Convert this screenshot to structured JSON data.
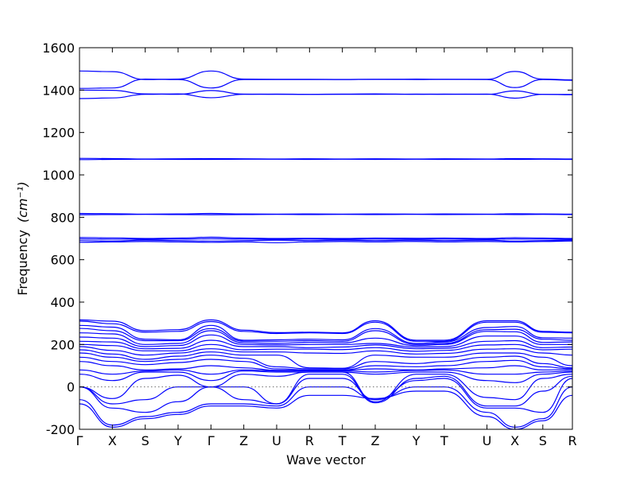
{
  "chart_data": {
    "type": "line",
    "xlabel": "Wave vector",
    "ylabel": "Frequency",
    "ylabel_unit": "(cm⁻¹)",
    "ylim": [
      -200,
      1600
    ],
    "yticks": [
      -200,
      0,
      200,
      400,
      600,
      800,
      1000,
      1200,
      1400,
      1600
    ],
    "zero_line": true,
    "grid": false,
    "line_color": "#0000ff",
    "high_symmetry_points": [
      "Γ",
      "X",
      "S",
      "Y",
      "Γ",
      "Z",
      "U",
      "R",
      "T",
      "Z",
      "Y",
      "T",
      "U",
      "X",
      "S",
      "R"
    ],
    "x": [
      0,
      1,
      2,
      3,
      4,
      5,
      6,
      7,
      8,
      9,
      10.25,
      11.1,
      12.4,
      13.25,
      14.1,
      15
    ],
    "series": [
      {
        "values": [
          1490,
          1487,
          1450,
          1452,
          1490,
          1452,
          1451,
          1451,
          1450,
          1451,
          1452,
          1451,
          1451,
          1488,
          1452,
          1448
        ]
      },
      {
        "values": [
          1408,
          1410,
          1452,
          1450,
          1410,
          1450,
          1450,
          1450,
          1450,
          1451,
          1450,
          1451,
          1450,
          1412,
          1450,
          1446
        ]
      },
      {
        "values": [
          1400,
          1399,
          1382,
          1380,
          1398,
          1381,
          1380,
          1380,
          1381,
          1382,
          1380,
          1381,
          1380,
          1396,
          1380,
          1378
        ]
      },
      {
        "values": [
          1360,
          1363,
          1380,
          1382,
          1364,
          1380,
          1381,
          1380,
          1380,
          1380,
          1381,
          1380,
          1381,
          1362,
          1380,
          1380
        ]
      },
      {
        "values": [
          1078,
          1077,
          1075,
          1076,
          1077,
          1076,
          1075,
          1076,
          1075,
          1076,
          1075,
          1076,
          1075,
          1077,
          1076,
          1075
        ]
      },
      {
        "values": [
          1072,
          1073,
          1074,
          1073,
          1073,
          1074,
          1074,
          1073,
          1074,
          1073,
          1074,
          1073,
          1074,
          1073,
          1074,
          1073
        ]
      },
      {
        "values": [
          818,
          817,
          815,
          816,
          818,
          816,
          815,
          816,
          815,
          816,
          815,
          816,
          815,
          817,
          816,
          815
        ]
      },
      {
        "values": [
          812,
          813,
          814,
          813,
          812,
          813,
          814,
          813,
          814,
          813,
          814,
          813,
          814,
          813,
          814,
          813
        ]
      },
      {
        "values": [
          705,
          703,
          700,
          702,
          706,
          702,
          700,
          701,
          700,
          702,
          701,
          702,
          700,
          704,
          702,
          700
        ]
      },
      {
        "values": [
          698,
          697,
          696,
          697,
          699,
          697,
          696,
          697,
          696,
          697,
          696,
          697,
          696,
          698,
          697,
          696
        ]
      },
      {
        "values": [
          690,
          688,
          692,
          690,
          688,
          690,
          692,
          690,
          692,
          690,
          692,
          690,
          692,
          688,
          690,
          692
        ]
      },
      {
        "values": [
          682,
          684,
          686,
          684,
          682,
          684,
          680,
          684,
          686,
          684,
          686,
          684,
          686,
          684,
          686,
          688
        ]
      },
      {
        "values": [
          316,
          310,
          265,
          270,
          316,
          268,
          256,
          258,
          255,
          312,
          220,
          220,
          312,
          312,
          262,
          258
        ]
      },
      {
        "values": [
          310,
          298,
          258,
          262,
          308,
          262,
          252,
          255,
          252,
          305,
          215,
          215,
          305,
          305,
          258,
          255
        ]
      },
      {
        "values": [
          290,
          282,
          225,
          222,
          290,
          220,
          222,
          225,
          222,
          275,
          205,
          212,
          280,
          285,
          232,
          230
        ]
      },
      {
        "values": [
          276,
          265,
          218,
          218,
          275,
          215,
          215,
          218,
          215,
          265,
          200,
          205,
          270,
          272,
          225,
          220
        ]
      },
      {
        "values": [
          255,
          250,
          200,
          205,
          265,
          208,
          205,
          210,
          208,
          230,
          195,
          200,
          262,
          260,
          210,
          212
        ]
      },
      {
        "values": [
          235,
          230,
          190,
          195,
          245,
          200,
          198,
          200,
          200,
          205,
          188,
          190,
          240,
          240,
          200,
          200
        ]
      },
      {
        "values": [
          215,
          212,
          180,
          182,
          220,
          190,
          190,
          185,
          188,
          198,
          180,
          182,
          215,
          218,
          185,
          188
        ]
      },
      {
        "values": [
          200,
          195,
          170,
          170,
          200,
          175,
          178,
          178,
          176,
          185,
          168,
          172,
          198,
          200,
          175,
          178
        ]
      },
      {
        "values": [
          190,
          172,
          150,
          160,
          180,
          165,
          165,
          160,
          158,
          170,
          155,
          158,
          178,
          180,
          160,
          150
        ]
      },
      {
        "values": [
          175,
          155,
          130,
          145,
          165,
          150,
          150,
          90,
          88,
          150,
          140,
          140,
          160,
          160,
          140,
          100
        ]
      },
      {
        "values": [
          160,
          140,
          120,
          130,
          150,
          135,
          95,
          85,
          85,
          120,
          110,
          120,
          140,
          145,
          110,
          90
        ]
      },
      {
        "values": [
          140,
          120,
          105,
          115,
          130,
          120,
          85,
          80,
          80,
          100,
          95,
          100,
          120,
          125,
          95,
          85
        ]
      },
      {
        "values": [
          120,
          100,
          80,
          85,
          100,
          90,
          78,
          78,
          78,
          85,
          80,
          85,
          90,
          100,
          80,
          82
        ]
      },
      {
        "values": [
          80,
          60,
          75,
          80,
          60,
          80,
          75,
          75,
          75,
          70,
          78,
          80,
          60,
          60,
          70,
          75
        ]
      },
      {
        "values": [
          60,
          30,
          70,
          70,
          30,
          75,
          70,
          70,
          70,
          60,
          70,
          70,
          30,
          20,
          60,
          70
        ]
      },
      {
        "values": [
          0,
          -55,
          40,
          55,
          0,
          60,
          50,
          70,
          70,
          -70,
          60,
          60,
          -50,
          -60,
          40,
          60
        ]
      },
      {
        "values": [
          0,
          -80,
          -60,
          0,
          0,
          0,
          -80,
          60,
          60,
          -75,
          40,
          50,
          -90,
          -90,
          -20,
          50
        ]
      },
      {
        "values": [
          0,
          -100,
          -120,
          -70,
          0,
          -60,
          -80,
          40,
          40,
          -60,
          30,
          40,
          -100,
          -100,
          -120,
          40
        ]
      },
      {
        "values": [
          -60,
          -180,
          -140,
          -120,
          -80,
          -80,
          -90,
          0,
          0,
          -60,
          0,
          0,
          -120,
          -190,
          -150,
          0
        ]
      },
      {
        "values": [
          -80,
          -190,
          -150,
          -130,
          -90,
          -90,
          -100,
          -40,
          -40,
          -55,
          -20,
          -20,
          -140,
          -200,
          -160,
          -40
        ]
      }
    ]
  }
}
